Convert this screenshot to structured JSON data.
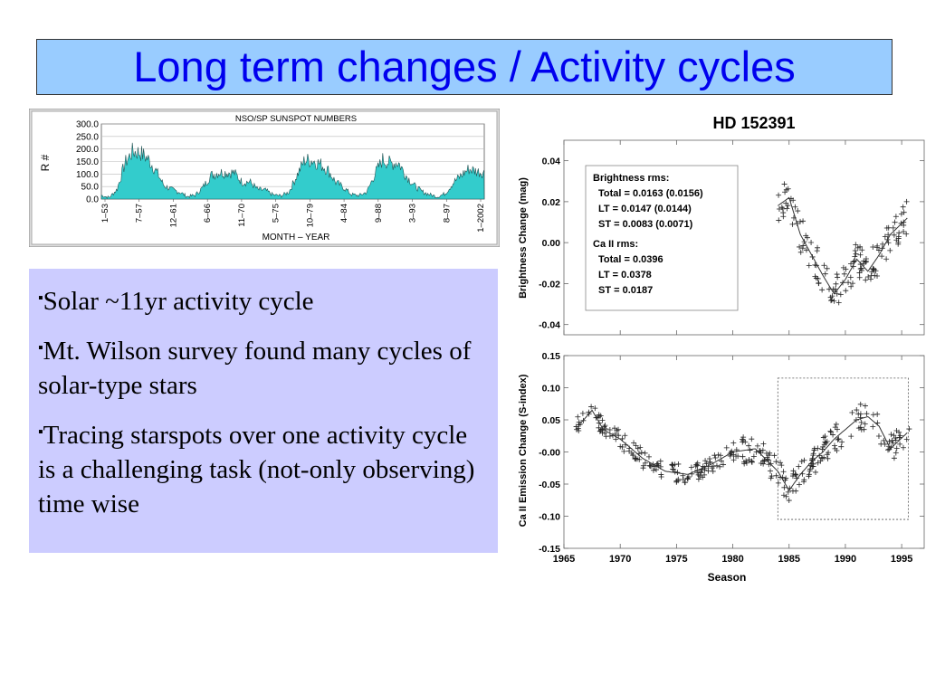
{
  "slide": {
    "title": "Long term changes / Activity cycles",
    "bullets": [
      {
        "marker": "▪",
        "text": "Solar ~11yr activity cycle"
      },
      {
        "marker": "▪",
        "text": "Mt. Wilson survey found many cycles of solar-type stars"
      },
      {
        "marker": "▪",
        "text": "Tracing starspots over one activity cycle is a challenging task (not-only observing) time wise"
      }
    ]
  },
  "colors": {
    "title_bg": "#99ccff",
    "title_text": "#0000ee",
    "bullet_bg": "#ccccff",
    "sunspot_fill": "#33cccc"
  },
  "chart_data": [
    {
      "type": "area",
      "title": "NSO/SP SUNSPOT NUMBERS",
      "xlabel": "MONTH – YEAR",
      "ylabel": "R #",
      "ylim": [
        0,
        300
      ],
      "yticks": [
        "300.0",
        "250.0",
        "200.0",
        "150.0",
        "100.0",
        "50.0",
        "0.0"
      ],
      "xticks": [
        "1–53",
        "7–57",
        "12–61",
        "6–66",
        "11–70",
        "5–75",
        "10–79",
        "4–84",
        "9–88",
        "3–93",
        "8–97",
        "1–2002"
      ],
      "x_years": [
        1953,
        1954,
        1955,
        1956,
        1957,
        1958,
        1959,
        1960,
        1961,
        1962,
        1963,
        1964,
        1965,
        1966,
        1967,
        1968,
        1969,
        1970,
        1971,
        1972,
        1973,
        1974,
        1975,
        1976,
        1977,
        1978,
        1979,
        1980,
        1981,
        1982,
        1983,
        1984,
        1985,
        1986,
        1987,
        1988,
        1989,
        1990,
        1991,
        1992,
        1993,
        1994,
        1995,
        1996,
        1997,
        1998,
        1999,
        2000,
        2001,
        2002
      ],
      "values": [
        15,
        6,
        38,
        142,
        190,
        185,
        159,
        112,
        54,
        38,
        28,
        10,
        15,
        47,
        94,
        106,
        106,
        105,
        67,
        69,
        38,
        35,
        16,
        13,
        28,
        93,
        155,
        155,
        140,
        116,
        67,
        46,
        18,
        14,
        29,
        100,
        158,
        142,
        146,
        94,
        55,
        30,
        18,
        9,
        22,
        64,
        93,
        120,
        111,
        105
      ]
    },
    {
      "type": "scatter",
      "title": "HD 152391",
      "panel": "brightness",
      "ylabel": "Brightness Change (mag)",
      "yticks": [
        "0.04",
        "0.02",
        "0.00",
        "-0.02",
        "-0.04"
      ],
      "ylim": [
        -0.045,
        0.05
      ],
      "xlim": [
        1965,
        1997
      ],
      "annotation": [
        "Brightness rms:",
        "Total = 0.0163 (0.0156)",
        "LT = 0.0147 (0.0144)",
        "ST = 0.0083 (0.0071)",
        "Ca II rms:",
        "Total = 0.0396",
        "LT = 0.0378",
        "ST = 0.0187"
      ],
      "trend": {
        "x": [
          1984,
          1985,
          1986,
          1987,
          1988,
          1989,
          1990,
          1991,
          1992,
          1993,
          1994,
          1995.5
        ],
        "y": [
          0.018,
          0.022,
          0.004,
          -0.006,
          -0.016,
          -0.025,
          -0.018,
          -0.008,
          -0.014,
          -0.006,
          0.004,
          0.012
        ]
      }
    },
    {
      "type": "scatter",
      "panel": "emission",
      "ylabel": "Ca II Emission Change (S-index)",
      "xlabel": "Season",
      "yticks": [
        "0.15",
        "0.10",
        "0.05",
        "-0.00",
        "-0.05",
        "-0.10",
        "-0.15"
      ],
      "xticks": [
        "1965",
        "1970",
        "1975",
        "1980",
        "1985",
        "1990",
        "1995"
      ],
      "ylim": [
        -0.15,
        0.15
      ],
      "xlim": [
        1965,
        1997
      ],
      "trend": {
        "x": [
          1966.5,
          1967.5,
          1968.5,
          1970,
          1972,
          1974,
          1976,
          1978,
          1980,
          1982,
          1984,
          1985,
          1986,
          1987,
          1988,
          1989,
          1990,
          1991,
          1992,
          1993,
          1994,
          1995.5
        ],
        "y": [
          0.045,
          0.065,
          0.035,
          0.02,
          -0.01,
          -0.03,
          -0.035,
          -0.02,
          0.0,
          0.005,
          -0.03,
          -0.06,
          -0.035,
          -0.015,
          0.0,
          0.02,
          0.035,
          0.05,
          0.055,
          0.04,
          0.005,
          0.03
        ]
      }
    }
  ]
}
